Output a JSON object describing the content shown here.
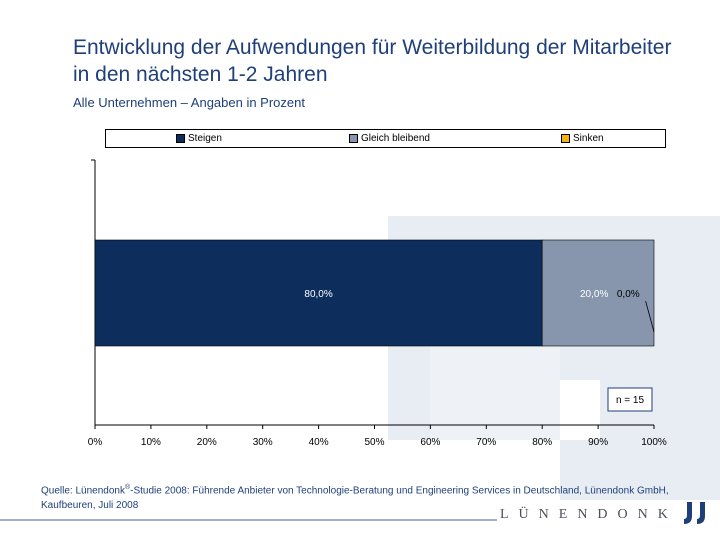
{
  "title": "Entwicklung der Aufwendungen für Weiterbildung der Mitarbeiter in den nächsten 1-2 Jahren",
  "subtitle": "Alle Unternehmen – Angaben in Prozent",
  "chart_data": {
    "type": "bar",
    "orientation": "horizontal",
    "stacked": true,
    "categories": [
      ""
    ],
    "series": [
      {
        "name": "Steigen",
        "values": [
          80.0
        ],
        "label": "80,0%",
        "color": "#0d2e5c"
      },
      {
        "name": "Gleich bleibend",
        "values": [
          20.0
        ],
        "label": "20,0%",
        "color": "#8796ad"
      },
      {
        "name": "Sinken",
        "values": [
          0.0
        ],
        "label": "0,0%",
        "color": "#f2b313"
      }
    ],
    "xlim": [
      0,
      100
    ],
    "xticks": [
      0,
      10,
      20,
      30,
      40,
      50,
      60,
      70,
      80,
      90,
      100
    ],
    "xtick_labels": [
      "0%",
      "10%",
      "20%",
      "30%",
      "40%",
      "50%",
      "60%",
      "70%",
      "80%",
      "90%",
      "100%"
    ],
    "grid": false,
    "legend_position": "top",
    "annotation": "n = 15"
  },
  "footer": {
    "prefix": "Quelle: Lünendonk",
    "reg": "®",
    "rest": "-Studie 2008: Führende Anbieter von Technologie-Beratung und Engineering Services in Deutschland, Lünendonk GmbH, Kaufbeuren, Juli 2008"
  },
  "logo_text": "LÜNENDONK",
  "colors": {
    "brand": "#1e3f7a",
    "watermark": "#e6ebf3"
  }
}
